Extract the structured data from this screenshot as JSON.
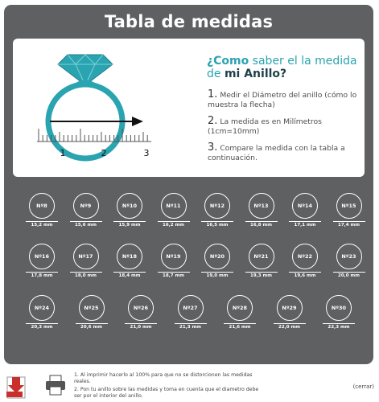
{
  "title": "Tabla de medidas",
  "info": {
    "heading_part1": "¿Como",
    "heading_part2": " saber el la medida de ",
    "heading_part3": "mi Anillo?",
    "ruler_labels": [
      "1",
      "2",
      "3"
    ],
    "steps": [
      {
        "num": "1.",
        "text": "Medir el Diámetro del anillo (cómo lo muestra la flecha)"
      },
      {
        "num": "2.",
        "text": "La medida es en Milímetros (1cm=10mm)"
      },
      {
        "num": "3.",
        "text": "Compare la medida con la tabla a continuación."
      }
    ]
  },
  "sizes": [
    {
      "label": "Nº8",
      "mm": "15,2 mm"
    },
    {
      "label": "Nº9",
      "mm": "15,6 mm"
    },
    {
      "label": "Nº10",
      "mm": "15,9 mm"
    },
    {
      "label": "Nº11",
      "mm": "16,2 mm"
    },
    {
      "label": "Nº12",
      "mm": "16,5 mm"
    },
    {
      "label": "Nº13",
      "mm": "16,8 mm"
    },
    {
      "label": "Nº14",
      "mm": "17,1 mm"
    },
    {
      "label": "Nº15",
      "mm": "17,4 mm"
    },
    {
      "label": "Nº16",
      "mm": "17,8 mm"
    },
    {
      "label": "Nº17",
      "mm": "18,0 mm"
    },
    {
      "label": "Nº18",
      "mm": "18,4 mm"
    },
    {
      "label": "Nº19",
      "mm": "18,7 mm"
    },
    {
      "label": "Nº20",
      "mm": "19,0 mm"
    },
    {
      "label": "Nº21",
      "mm": "19,3 mm"
    },
    {
      "label": "Nº22",
      "mm": "19,6 mm"
    },
    {
      "label": "Nº23",
      "mm": "20,0 mm"
    },
    {
      "label": "Nº24",
      "mm": "20,3 mm"
    },
    {
      "label": "Nº25",
      "mm": "20,6 mm"
    },
    {
      "label": "Nº26",
      "mm": "21,0 mm"
    },
    {
      "label": "Nº27",
      "mm": "21,3 mm"
    },
    {
      "label": "Nº28",
      "mm": "21,6 mm"
    },
    {
      "label": "Nº29",
      "mm": "22,0 mm"
    },
    {
      "label": "Nº30",
      "mm": "22,3 mm"
    }
  ],
  "footer": {
    "notes": [
      "1. Al imprimir hacerlo al 100% para que no se distorcionen las medidas reales.",
      "2. Pon tu anillo sobre las medidas y toma en cuenta que el diametro debe ser por el interior del anillo."
    ],
    "close_label": "(cerrar)",
    "pdf_icon": "pdf-download-icon",
    "print_icon": "printer-icon"
  },
  "colors": {
    "panel": "#5e6061",
    "accent": "#2aa4b0",
    "ring": "#2aa4b0"
  }
}
